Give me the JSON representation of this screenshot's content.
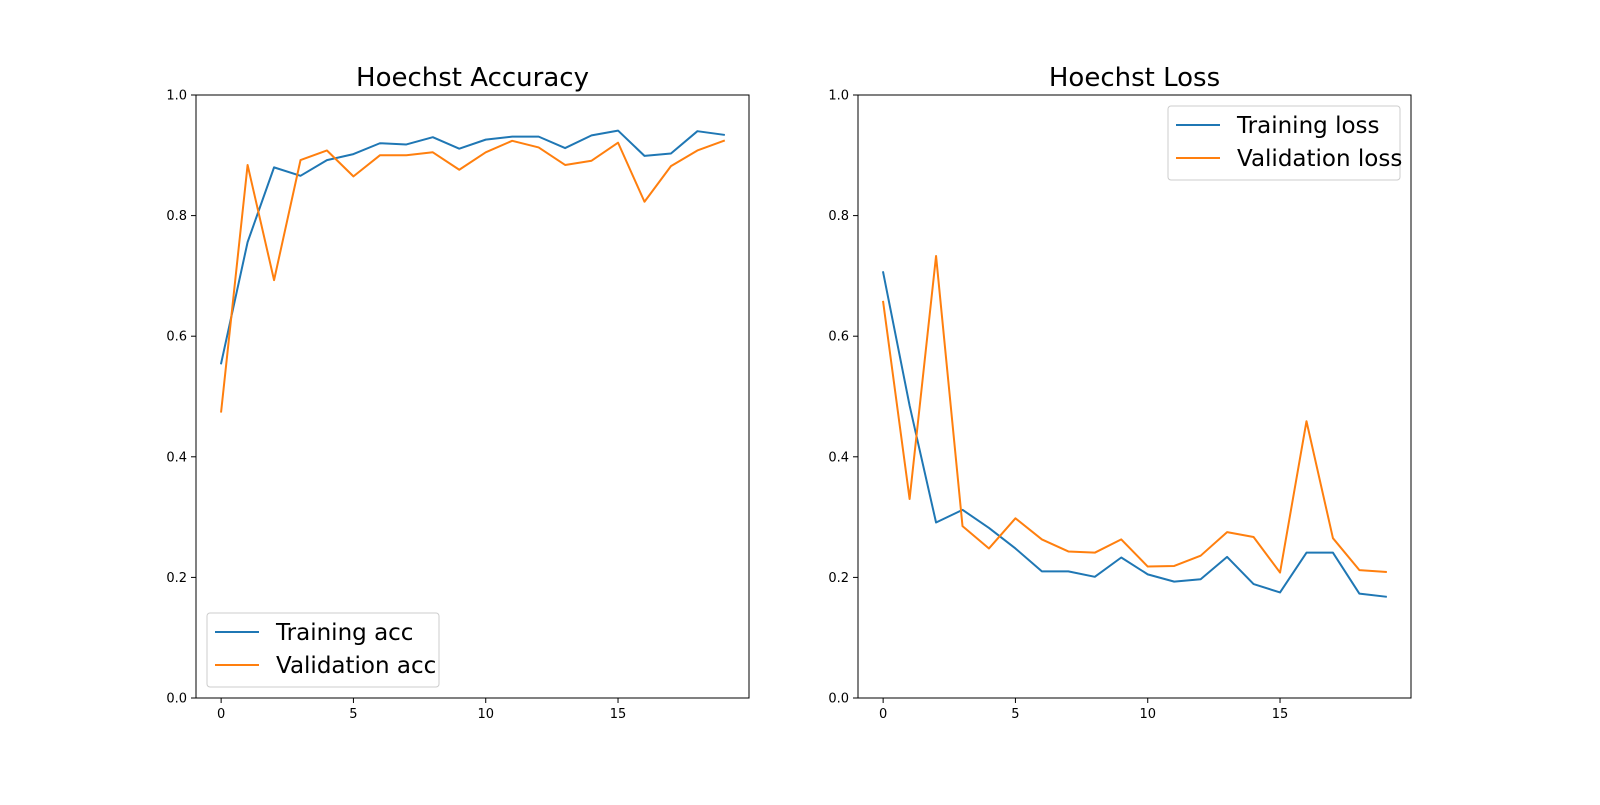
{
  "chart_data": [
    {
      "type": "line",
      "title": "Hoechst Accuracy",
      "xlabel": "",
      "ylabel": "",
      "xlim": [
        -0.95,
        19.95
      ],
      "ylim": [
        0.0,
        1.0
      ],
      "xticks": [
        0,
        5,
        10,
        15
      ],
      "yticks": [
        0.0,
        0.2,
        0.4,
        0.6,
        0.8,
        1.0
      ],
      "xtick_labels": [
        "0",
        "5",
        "10",
        "15"
      ],
      "ytick_labels": [
        "0.0",
        "0.2",
        "0.4",
        "0.6",
        "0.8",
        "1.0"
      ],
      "grid": false,
      "legend_position": "lower-left",
      "x": [
        0,
        1,
        2,
        3,
        4,
        5,
        6,
        7,
        8,
        9,
        10,
        11,
        12,
        13,
        14,
        15,
        16,
        17,
        18,
        19
      ],
      "series": [
        {
          "name": "Training acc",
          "color": "#1f77b4",
          "values": [
            0.555,
            0.756,
            0.88,
            0.866,
            0.892,
            0.902,
            0.92,
            0.918,
            0.93,
            0.911,
            0.926,
            0.931,
            0.931,
            0.912,
            0.933,
            0.941,
            0.899,
            0.903,
            0.94,
            0.934
          ]
        },
        {
          "name": "Validation acc",
          "color": "#ff7f0e",
          "values": [
            0.475,
            0.884,
            0.693,
            0.892,
            0.908,
            0.865,
            0.9,
            0.9,
            0.905,
            0.876,
            0.905,
            0.924,
            0.913,
            0.884,
            0.891,
            0.921,
            0.823,
            0.882,
            0.908,
            0.924
          ]
        }
      ]
    },
    {
      "type": "line",
      "title": "Hoechst Loss",
      "xlabel": "",
      "ylabel": "",
      "xlim": [
        -0.95,
        19.95
      ],
      "ylim": [
        0.0,
        1.0
      ],
      "xticks": [
        0,
        5,
        10,
        15
      ],
      "yticks": [
        0.0,
        0.2,
        0.4,
        0.6,
        0.8,
        1.0
      ],
      "xtick_labels": [
        "0",
        "5",
        "10",
        "15"
      ],
      "ytick_labels": [
        "0.0",
        "0.2",
        "0.4",
        "0.6",
        "0.8",
        "1.0"
      ],
      "grid": false,
      "legend_position": "upper-right",
      "x": [
        0,
        1,
        2,
        3,
        4,
        5,
        6,
        7,
        8,
        9,
        10,
        11,
        12,
        13,
        14,
        15,
        16,
        17,
        18,
        19
      ],
      "series": [
        {
          "name": "Training loss",
          "color": "#1f77b4",
          "values": [
            0.706,
            0.485,
            0.291,
            0.312,
            0.282,
            0.248,
            0.21,
            0.21,
            0.201,
            0.233,
            0.205,
            0.193,
            0.197,
            0.234,
            0.189,
            0.175,
            0.241,
            0.241,
            0.173,
            0.168
          ]
        },
        {
          "name": "Validation loss",
          "color": "#ff7f0e",
          "values": [
            0.657,
            0.33,
            0.733,
            0.285,
            0.248,
            0.298,
            0.263,
            0.243,
            0.241,
            0.263,
            0.218,
            0.219,
            0.236,
            0.275,
            0.267,
            0.208,
            0.459,
            0.265,
            0.212,
            0.209
          ]
        }
      ]
    }
  ]
}
